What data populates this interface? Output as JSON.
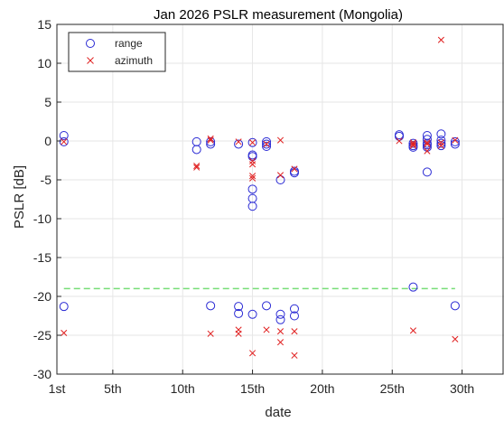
{
  "chart_data": {
    "type": "scatter",
    "title": "Jan 2026 PSLR measurement (Mongolia)",
    "xlabel": "date",
    "ylabel": "PSLR [dB]",
    "xlim": [
      1,
      33
    ],
    "ylim": [
      -30,
      15
    ],
    "x_ticks": [
      {
        "value": 1,
        "label": "1st"
      },
      {
        "value": 5,
        "label": "5th"
      },
      {
        "value": 10,
        "label": "10th"
      },
      {
        "value": 15,
        "label": "15th"
      },
      {
        "value": 20,
        "label": "20th"
      },
      {
        "value": 25,
        "label": "25th"
      },
      {
        "value": 30,
        "label": "30th"
      }
    ],
    "y_ticks": [
      {
        "value": 15,
        "label": "15"
      },
      {
        "value": 10,
        "label": "10"
      },
      {
        "value": 5,
        "label": "5"
      },
      {
        "value": 0,
        "label": "0"
      },
      {
        "value": -5,
        "label": "-5"
      },
      {
        "value": -10,
        "label": "-10"
      },
      {
        "value": -15,
        "label": "-15"
      },
      {
        "value": -20,
        "label": "-20"
      },
      {
        "value": -25,
        "label": "-25"
      },
      {
        "value": -30,
        "label": "-30"
      }
    ],
    "grid": true,
    "legend_position": "top-left",
    "threshold": {
      "y": -19,
      "x_range": [
        1.5,
        29.5
      ],
      "color": "#77dd77",
      "style": "dashed"
    },
    "series": [
      {
        "name": "range",
        "marker": "circle",
        "color": "#2a2ad4",
        "points": [
          [
            1.5,
            0.7
          ],
          [
            1.5,
            -0.1
          ],
          [
            1.5,
            -21.3
          ],
          [
            11,
            -0.1
          ],
          [
            11,
            -1.1
          ],
          [
            12,
            -0.1
          ],
          [
            12,
            -0.4
          ],
          [
            12,
            -21.2
          ],
          [
            14,
            -0.4
          ],
          [
            14,
            -21.3
          ],
          [
            14,
            -22.2
          ],
          [
            15,
            -0.2
          ],
          [
            15,
            -1.8
          ],
          [
            15,
            -2.0
          ],
          [
            15,
            -6.2
          ],
          [
            15,
            -7.4
          ],
          [
            15,
            -8.4
          ],
          [
            15,
            -22.3
          ],
          [
            16,
            -0.1
          ],
          [
            16,
            -0.4
          ],
          [
            16,
            -0.7
          ],
          [
            16,
            -21.2
          ],
          [
            17,
            -5.0
          ],
          [
            17,
            -22.3
          ],
          [
            17,
            -23.0
          ],
          [
            18,
            -3.9
          ],
          [
            18,
            -4.1
          ],
          [
            18,
            -21.6
          ],
          [
            18,
            -22.5
          ],
          [
            25.5,
            0.6
          ],
          [
            25.5,
            0.8
          ],
          [
            26.5,
            -0.3
          ],
          [
            26.5,
            -0.6
          ],
          [
            26.5,
            -0.8
          ],
          [
            26.5,
            -18.8
          ],
          [
            27.5,
            0.7
          ],
          [
            27.5,
            0.2
          ],
          [
            27.5,
            -0.3
          ],
          [
            27.5,
            -0.5
          ],
          [
            27.5,
            -0.8
          ],
          [
            27.5,
            -4.0
          ],
          [
            28.5,
            0.9
          ],
          [
            28.5,
            0.1
          ],
          [
            28.5,
            -0.3
          ],
          [
            28.5,
            -0.6
          ],
          [
            29.5,
            -0.1
          ],
          [
            29.5,
            -0.4
          ],
          [
            29.5,
            -21.2
          ]
        ]
      },
      {
        "name": "azimuth",
        "marker": "x",
        "color": "#e02020",
        "points": [
          [
            1.5,
            -0.1
          ],
          [
            1.5,
            -24.7
          ],
          [
            11,
            -3.2
          ],
          [
            11,
            -3.4
          ],
          [
            12,
            0.3
          ],
          [
            12,
            0.1
          ],
          [
            12,
            -24.8
          ],
          [
            14,
            -0.1
          ],
          [
            14,
            -24.3
          ],
          [
            14,
            -24.8
          ],
          [
            15,
            -0.2
          ],
          [
            15,
            -2.6
          ],
          [
            15,
            -3.0
          ],
          [
            15,
            -4.5
          ],
          [
            15,
            -4.8
          ],
          [
            15,
            -27.3
          ],
          [
            16,
            -0.4
          ],
          [
            16,
            -24.3
          ],
          [
            17,
            0.1
          ],
          [
            17,
            -4.4
          ],
          [
            17,
            -24.5
          ],
          [
            17,
            -25.9
          ],
          [
            18,
            -3.6
          ],
          [
            18,
            -24.5
          ],
          [
            18,
            -27.6
          ],
          [
            25.5,
            0.0
          ],
          [
            26.5,
            -0.2
          ],
          [
            26.5,
            -0.4
          ],
          [
            26.5,
            -0.6
          ],
          [
            26.5,
            -24.4
          ],
          [
            27.5,
            -0.2
          ],
          [
            27.5,
            -0.4
          ],
          [
            27.5,
            -1.3
          ],
          [
            28.5,
            13.0
          ],
          [
            28.5,
            -0.2
          ],
          [
            28.5,
            -0.6
          ],
          [
            29.5,
            0.1
          ],
          [
            29.5,
            -25.5
          ]
        ]
      }
    ]
  }
}
